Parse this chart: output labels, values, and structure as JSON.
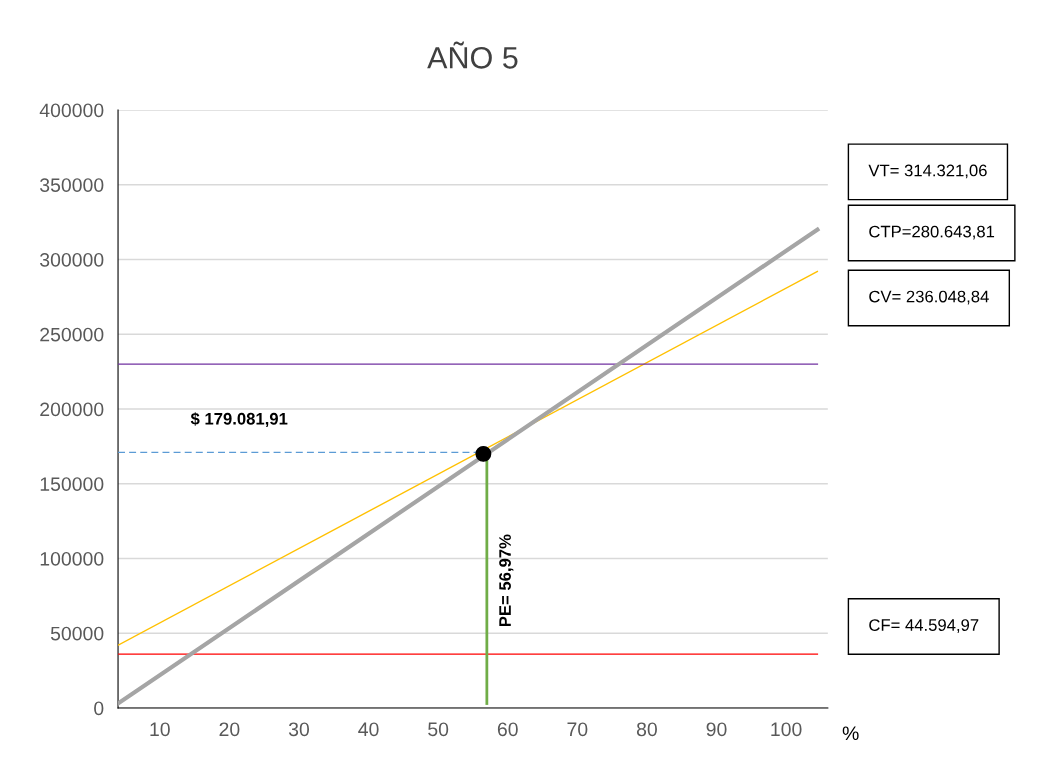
{
  "chart_data": {
    "type": "line",
    "title": "AÑO 5",
    "xlabel": "%",
    "xlim": [
      4,
      106
    ],
    "xticks": [
      10,
      20,
      30,
      40,
      50,
      60,
      70,
      80,
      90,
      100
    ],
    "ylim": [
      0,
      400000
    ],
    "yticks": [
      0,
      50000,
      100000,
      150000,
      200000,
      250000,
      300000,
      350000,
      400000
    ],
    "grid": "y",
    "marker": "none",
    "series": [
      {
        "color": "#ffc000",
        "x": [
          4,
          104.5
        ],
        "values": [
          42000,
          292000
        ]
      },
      {
        "color": "#7030a0",
        "x": [
          4,
          104.5
        ],
        "values": [
          230000,
          230000
        ]
      },
      {
        "color": "#ff0000",
        "x": [
          4,
          104.5
        ],
        "values": [
          36000,
          36000
        ]
      },
      {
        "color": "#a5a5a5",
        "x": [
          4,
          104.5
        ],
        "values": [
          3000,
          320000
        ]
      },
      {
        "color": "#5b9bd5",
        "x": [
          4,
          56.5
        ],
        "values": [
          171000,
          171000
        ],
        "line_style": "dashed"
      },
      {
        "color": "#70ad47",
        "x": [
          57,
          57
        ],
        "values": [
          3000,
          170000
        ]
      },
      {
        "type": "scatter",
        "color": "#000000",
        "x": [
          56.5
        ],
        "values": [
          170000
        ],
        "marker": "circle"
      }
    ],
    "annotations": [
      "$ 179.081,91",
      "PE= 56,97%",
      "VT= 314.321,06",
      "CTP=280.643,81",
      "CV= 236.048,84",
      "CF= 44.594,97"
    ]
  }
}
